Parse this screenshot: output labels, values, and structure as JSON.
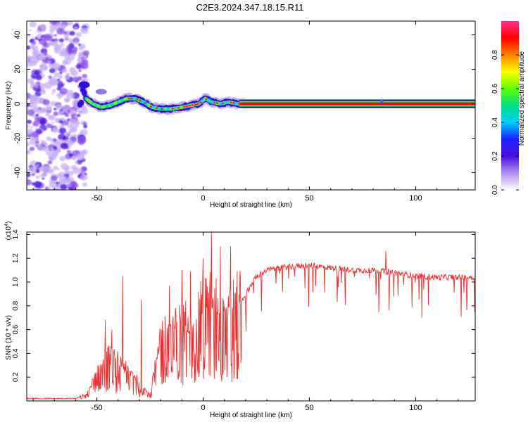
{
  "title": "C2E3.2024.347.18.15.R11",
  "chart_data": [
    {
      "type": "heatmap",
      "xlabel": "Height of straight line (km)",
      "ylabel": "Frequency (Hz)",
      "xlim": [
        -83,
        128
      ],
      "ylim": [
        -50,
        48
      ],
      "x_ticks": [
        -50,
        0,
        50,
        100
      ],
      "y_ticks": [
        -40,
        -20,
        0,
        20,
        40
      ],
      "colorbar": {
        "label": "Normalized spectral amplitude",
        "range": [
          0,
          1
        ],
        "ticks": [
          0.0,
          0.2,
          0.4,
          0.6,
          0.8
        ],
        "tick_labels": [
          "0.0",
          "0.2",
          "0.4",
          "0.6",
          "0.8"
        ],
        "colors": [
          "#ffffff",
          "#b090ee",
          "#4a10e0",
          "#1a20ff",
          "#00d0ff",
          "#00e080",
          "#60ff00",
          "#ffff00",
          "#ff8000",
          "#ff0000",
          "#ff3090"
        ]
      },
      "noise_region_x": [
        -83,
        -55
      ],
      "ridge": [
        {
          "x": -57,
          "y": 10
        },
        {
          "x": -55,
          "y": 3
        },
        {
          "x": -52,
          "y": 0
        },
        {
          "x": -48,
          "y": -2
        },
        {
          "x": -44,
          "y": -1
        },
        {
          "x": -40,
          "y": 1
        },
        {
          "x": -36,
          "y": 3
        },
        {
          "x": -32,
          "y": 3
        },
        {
          "x": -28,
          "y": 1
        },
        {
          "x": -24,
          "y": -2
        },
        {
          "x": -20,
          "y": -3
        },
        {
          "x": -15,
          "y": -3
        },
        {
          "x": -10,
          "y": -2
        },
        {
          "x": -6,
          "y": -1
        },
        {
          "x": -2,
          "y": 0
        },
        {
          "x": 1,
          "y": 3
        },
        {
          "x": 4,
          "y": 1
        },
        {
          "x": 8,
          "y": 0
        },
        {
          "x": 12,
          "y": 1
        },
        {
          "x": 16,
          "y": 0
        },
        {
          "x": 20,
          "y": 0
        },
        {
          "x": 128,
          "y": 0
        }
      ]
    },
    {
      "type": "line",
      "xlabel": "Height of straight line (km)",
      "ylabel": "SNR (10 * v/v)",
      "y_multiplier": "(x10",
      "y_multiplier_exp": "4",
      "y_multiplier_close": ")",
      "xlim": [
        -83,
        128
      ],
      "ylim": [
        0,
        1.42
      ],
      "x_ticks": [
        -50,
        0,
        50,
        100
      ],
      "y_ticks": [
        0.2,
        0.4,
        0.6,
        0.8,
        1.0,
        1.2,
        1.4
      ],
      "y_tick_labels": [
        "0.2",
        "0.4",
        "0.6",
        "0.8",
        "1.0",
        "1.2",
        "1.4"
      ],
      "color": "#e83030",
      "envelope": [
        {
          "x": -83,
          "y": 0.02
        },
        {
          "x": -60,
          "y": 0.02
        },
        {
          "x": -55,
          "y": 0.05
        },
        {
          "x": -50,
          "y": 0.2
        },
        {
          "x": -46,
          "y": 0.35
        },
        {
          "x": -40,
          "y": 0.3
        },
        {
          "x": -35,
          "y": 0.22
        },
        {
          "x": -30,
          "y": 0.15
        },
        {
          "x": -25,
          "y": 0.05
        },
        {
          "x": -20,
          "y": 0.5
        },
        {
          "x": -15,
          "y": 0.55
        },
        {
          "x": -10,
          "y": 0.6
        },
        {
          "x": -5,
          "y": 0.65
        },
        {
          "x": 0,
          "y": 0.75
        },
        {
          "x": 5,
          "y": 0.8
        },
        {
          "x": 10,
          "y": 0.7
        },
        {
          "x": 15,
          "y": 0.75
        },
        {
          "x": 20,
          "y": 0.9
        },
        {
          "x": 25,
          "y": 1.05
        },
        {
          "x": 30,
          "y": 1.1
        },
        {
          "x": 40,
          "y": 1.13
        },
        {
          "x": 50,
          "y": 1.14
        },
        {
          "x": 60,
          "y": 1.12
        },
        {
          "x": 70,
          "y": 1.1
        },
        {
          "x": 80,
          "y": 1.1
        },
        {
          "x": 90,
          "y": 1.08
        },
        {
          "x": 100,
          "y": 1.05
        },
        {
          "x": 110,
          "y": 1.04
        },
        {
          "x": 120,
          "y": 1.04
        },
        {
          "x": 128,
          "y": 1.04
        }
      ],
      "spikes": [
        {
          "x": -46,
          "y": 0.68
        },
        {
          "x": -43,
          "y": 0.6
        },
        {
          "x": -38,
          "y": 1.05
        },
        {
          "x": -29,
          "y": 0.85
        },
        {
          "x": -16,
          "y": 0.97
        },
        {
          "x": -10,
          "y": 1.1
        },
        {
          "x": -6,
          "y": 1.09
        },
        {
          "x": 0,
          "y": 1.2
        },
        {
          "x": 4,
          "y": 1.42
        },
        {
          "x": 8,
          "y": 1.3
        },
        {
          "x": 13,
          "y": 1.3
        },
        {
          "x": 86,
          "y": 1.26
        }
      ]
    }
  ]
}
